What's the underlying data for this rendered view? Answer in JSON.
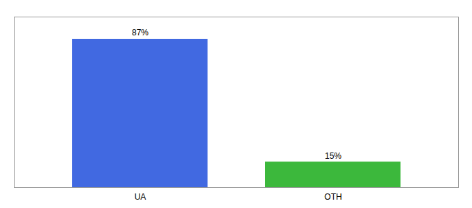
{
  "chart_data": {
    "type": "bar",
    "categories": [
      "UA",
      "OTH"
    ],
    "values": [
      87,
      15
    ],
    "value_labels": [
      "87%",
      "15%"
    ],
    "colors": [
      "#4169e1",
      "#3cb83c"
    ],
    "ylim": [
      0,
      100
    ],
    "data_labels": true,
    "tick_labels": "x",
    "grid": false
  }
}
